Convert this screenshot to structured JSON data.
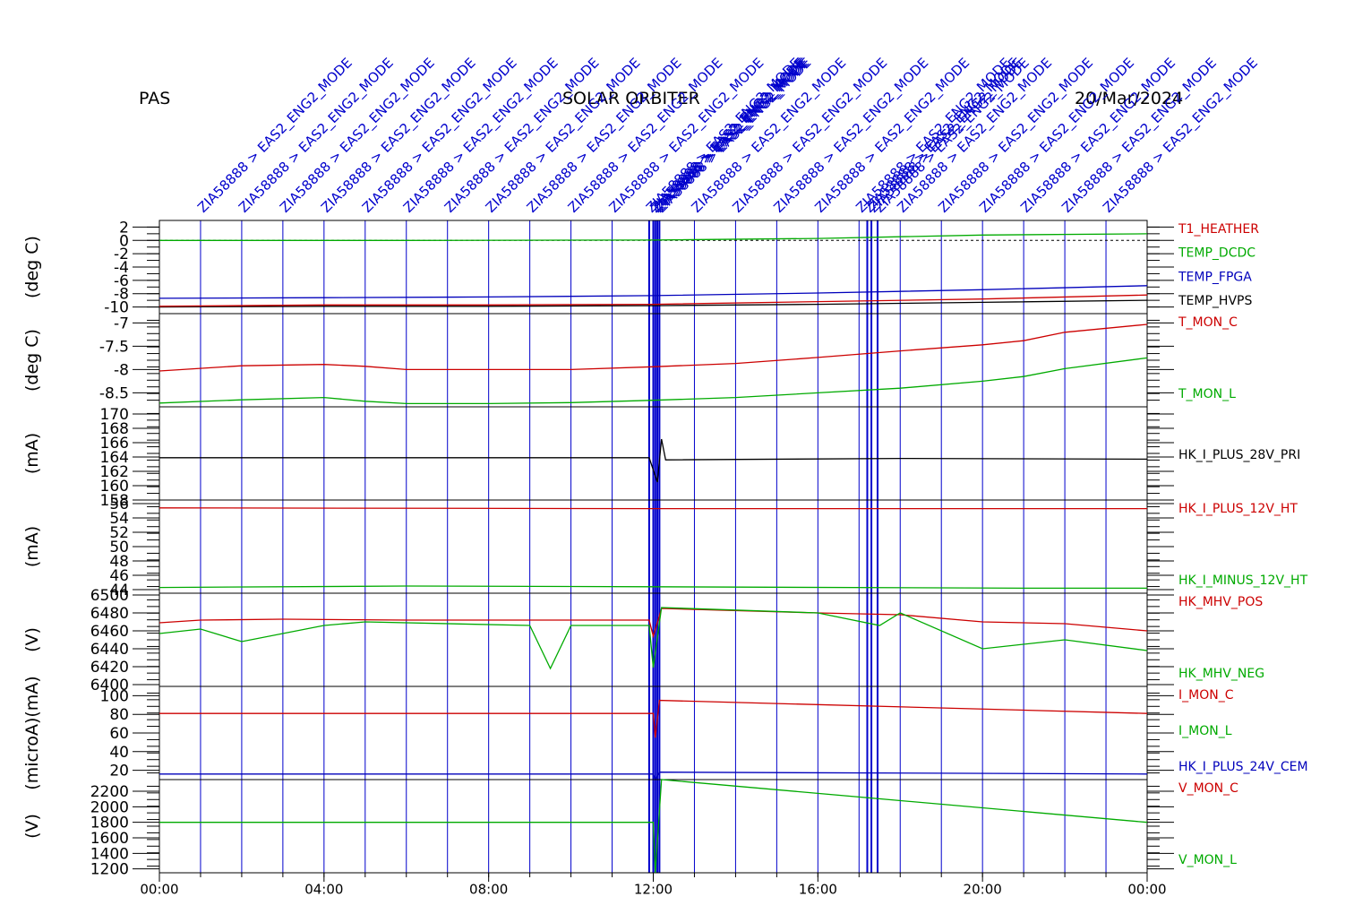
{
  "header": {
    "left": "PAS",
    "center": "SOLAR ORBITER",
    "right": "20/Mar/2024"
  },
  "chart_data": {
    "type": "line",
    "x_range": [
      "00:00",
      "24:00"
    ],
    "x_ticks": [
      "00:00",
      "04:00",
      "08:00",
      "12:00",
      "16:00",
      "20:00",
      "00:00"
    ],
    "colors": {
      "red": "#cc0000",
      "green": "#00aa00",
      "blue": "#0000bb",
      "black": "#000000",
      "event": "#0000cc"
    },
    "events": {
      "label": "ZIA58888 > EAS2_ENG2_MODE",
      "hours": [
        1.0,
        2.0,
        3.0,
        4.0,
        5.0,
        6.0,
        7.0,
        8.0,
        9.0,
        10.0,
        11.0,
        12.0,
        13.0,
        14.0,
        15.0,
        16.0,
        17.0,
        18.0,
        19.0,
        20.0,
        21.0,
        22.0,
        23.0
      ],
      "cluster_hours": [
        11.9,
        12.0,
        12.05,
        12.1,
        12.15,
        17.2,
        17.3,
        17.45
      ]
    },
    "panels": [
      {
        "ylabel": "(deg C)",
        "ylim": [
          -11,
          3
        ],
        "ticks": [
          2,
          0,
          -2,
          -4,
          -6,
          -8,
          -10
        ],
        "zero_line": true,
        "series": [
          {
            "name": "T1_HEATHER",
            "color": "red",
            "x": [],
            "y": []
          },
          {
            "name": "TEMP_DCDC",
            "color": "green",
            "x": [
              0,
              6,
              12,
              16,
              20,
              24
            ],
            "y": [
              0.0,
              0.0,
              0.05,
              0.3,
              0.8,
              1.0
            ]
          },
          {
            "name": "TEMP_FPGA",
            "color": "blue",
            "x": [
              0,
              4,
              8,
              12,
              16,
              20,
              24
            ],
            "y": [
              -8.7,
              -8.6,
              -8.5,
              -8.3,
              -7.9,
              -7.4,
              -6.8
            ]
          },
          {
            "name": "TEMP_HVPS",
            "color": "black",
            "x": [
              0,
              4,
              8,
              12,
              16,
              20,
              24
            ],
            "y": [
              -10.0,
              -9.9,
              -9.9,
              -9.8,
              -9.6,
              -9.3,
              -9.0
            ]
          },
          {
            "name": "",
            "color": "red",
            "x": [
              0,
              4,
              8,
              12,
              16,
              20,
              24
            ],
            "y": [
              -9.9,
              -9.7,
              -9.7,
              -9.6,
              -9.2,
              -8.8,
              -8.2
            ]
          }
        ]
      },
      {
        "ylabel": "(deg C)",
        "ylim": [
          -8.8,
          -6.8
        ],
        "ticks": [
          -7.0,
          -7.5,
          -8.0,
          -8.5
        ],
        "series": [
          {
            "name": "T_MON_C",
            "color": "red",
            "x": [
              0,
              2,
              4,
              5,
              6,
              8,
              10,
              12,
              14,
              16,
              18,
              20,
              21,
              22,
              24
            ],
            "y": [
              -8.03,
              -7.92,
              -7.89,
              -7.93,
              -8.0,
              -8.0,
              -8.0,
              -7.94,
              -7.87,
              -7.74,
              -7.6,
              -7.47,
              -7.38,
              -7.2,
              -7.03
            ]
          },
          {
            "name": "T_MON_L",
            "color": "green",
            "x": [
              0,
              2,
              4,
              5,
              6,
              8,
              10,
              12,
              14,
              16,
              18,
              20,
              21,
              22,
              24
            ],
            "y": [
              -8.72,
              -8.65,
              -8.6,
              -8.68,
              -8.73,
              -8.73,
              -8.71,
              -8.66,
              -8.6,
              -8.5,
              -8.4,
              -8.25,
              -8.15,
              -7.98,
              -7.75
            ]
          }
        ]
      },
      {
        "ylabel": "(mA)",
        "ylim": [
          158,
          171
        ],
        "ticks": [
          170,
          168,
          166,
          164,
          162,
          160,
          158
        ],
        "series": [
          {
            "name": "HK_I_PLUS_28V_PRI",
            "color": "black",
            "x": [
              0,
              6,
              11.9,
              12.1,
              12.2,
              12.3,
              18,
              24
            ],
            "y": [
              163.9,
              163.9,
              163.9,
              160.5,
              166.5,
              163.6,
              163.8,
              163.7
            ]
          }
        ]
      },
      {
        "ylabel": "(mA)",
        "ylim": [
          43.5,
          56.5
        ],
        "ticks": [
          56,
          54,
          52,
          50,
          48,
          46,
          44
        ],
        "series": [
          {
            "name": "HK_I_PLUS_12V_HT",
            "color": "red",
            "x": [
              0,
              12,
              24
            ],
            "y": [
              55.4,
              55.3,
              55.3
            ]
          },
          {
            "name": "HK_I_MINUS_12V_HT",
            "color": "green",
            "x": [
              0,
              6,
              12,
              21,
              24
            ],
            "y": [
              44.3,
              44.5,
              44.4,
              44.2,
              44.2
            ]
          }
        ]
      },
      {
        "ylabel": "(V)",
        "ylim": [
          6398,
          6502
        ],
        "ticks": [
          6500,
          6480,
          6460,
          6440,
          6420,
          6400
        ],
        "series": [
          {
            "name": "HK_MHV_POS",
            "color": "red",
            "x": [
              0,
              1,
              3,
              6,
              9,
              11.9,
              12.0,
              12.2,
              16,
              18,
              20,
              22,
              24
            ],
            "y": [
              6469,
              6472,
              6473,
              6472,
              6472,
              6472,
              6454,
              6485,
              6480,
              6478,
              6470,
              6468,
              6460
            ]
          },
          {
            "name": "HK_MHV_NEG",
            "color": "green",
            "x": [
              0,
              1,
              2,
              4,
              5,
              9,
              9.5,
              10,
              11.9,
              12.0,
              12.2,
              16,
              17.5,
              18,
              20,
              22,
              24
            ],
            "y": [
              6457,
              6462,
              6448,
              6466,
              6470,
              6466,
              6418,
              6466,
              6466,
              6419,
              6486,
              6480,
              6466,
              6480,
              6440,
              6450,
              6438
            ]
          }
        ]
      },
      {
        "ylabel": "(microA)(mA)",
        "ylim": [
          10,
          110
        ],
        "ticks": [
          100,
          80,
          60,
          40,
          20
        ],
        "series": [
          {
            "name": "I_MON_C",
            "color": "red",
            "x": [
              0,
              0.7,
              12.0,
              12.05,
              12.15,
              24
            ],
            "y": [
              81,
              81,
              81,
              55,
              95,
              81
            ]
          },
          {
            "name": "I_MON_L",
            "color": "green",
            "x": [],
            "y": []
          },
          {
            "name": "HK_I_PLUS_24V_CEM",
            "color": "blue",
            "x": [
              0,
              12.0,
              12.05,
              12.15,
              24
            ],
            "y": [
              16,
              16,
              10,
              18,
              16
            ]
          }
        ]
      },
      {
        "ylabel": "(V)",
        "ylim": [
          1150,
          2350
        ],
        "ticks": [
          2200,
          2000,
          1800,
          1600,
          1400,
          1200
        ],
        "series": [
          {
            "name": "V_MON_C",
            "color": "red",
            "x": [],
            "y": []
          },
          {
            "name": "V_MON_L",
            "color": "green",
            "x": [
              0,
              12.0,
              12.05,
              12.2,
              24
            ],
            "y": [
              1800,
              1800,
              1150,
              2350,
              1800
            ]
          }
        ]
      }
    ]
  }
}
